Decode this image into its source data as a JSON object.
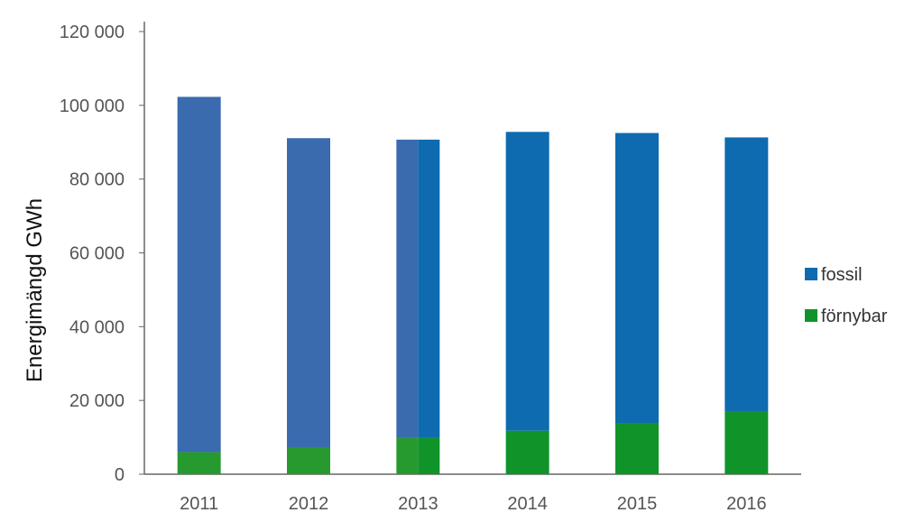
{
  "chart_data": {
    "type": "bar",
    "stacked": true,
    "categories": [
      "2011",
      "2012",
      "2013",
      "2014",
      "2015",
      "2016"
    ],
    "series": [
      {
        "name": "förnybar",
        "values": [
          6000,
          7200,
          9800,
          11800,
          13800,
          17000
        ]
      },
      {
        "name": "fossil",
        "values": [
          96300,
          83900,
          80900,
          81000,
          78700,
          74300
        ]
      }
    ],
    "ylabel": "Energimängd GWh",
    "xlabel": "",
    "ylim": [
      0,
      120000
    ],
    "yticks": [
      0,
      20000,
      40000,
      60000,
      80000,
      100000,
      120000
    ],
    "ytick_labels": [
      "0",
      "20 000",
      "40 000",
      "60 000",
      "80 000",
      "100 000",
      "120 000"
    ],
    "legend": {
      "position": "right",
      "entries": [
        "fossil",
        "förnybar"
      ]
    },
    "grid": false,
    "colors": {
      "fossil_2011_2013": "#3A6BAF",
      "fossil": "#0E6BB0",
      "fornybar_2011_2013": "#279A2F",
      "fornybar": "#10942A",
      "axis": "#666666"
    }
  }
}
